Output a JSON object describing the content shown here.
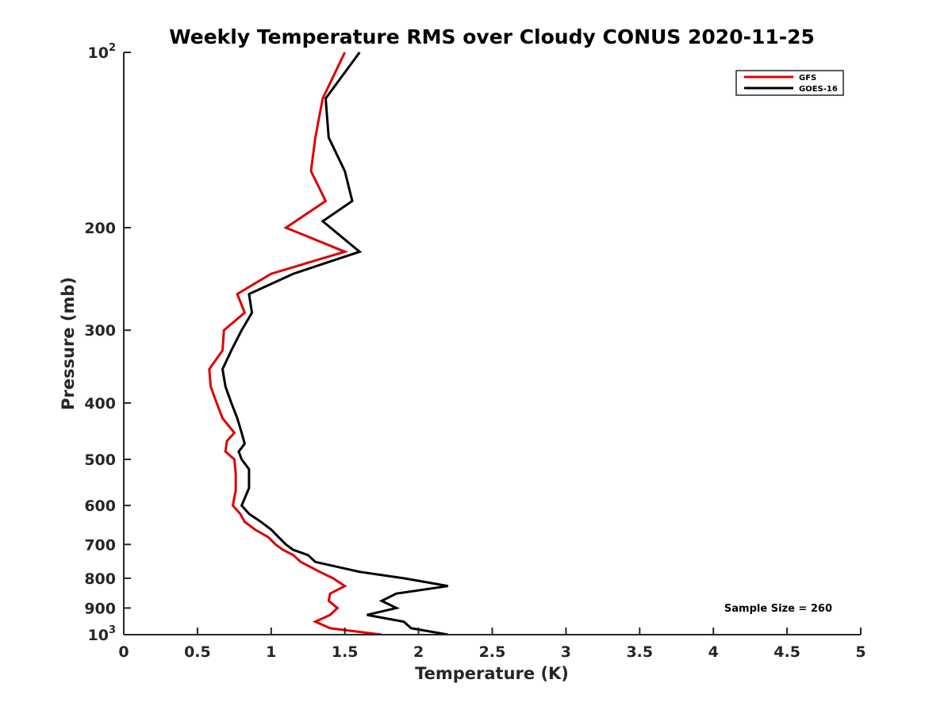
{
  "chart_data": {
    "type": "line",
    "title": "Weekly Temperature RMS over Cloudy CONUS 2020-11-25",
    "xlabel": "Temperature (K)",
    "ylabel": "Pressure (mb)",
    "xlim": [
      0,
      5
    ],
    "ylim": [
      1000,
      100
    ],
    "y_scale": "log",
    "y_reversed": true,
    "x_ticks": [
      0,
      0.5,
      1,
      1.5,
      2,
      2.5,
      3,
      3.5,
      4,
      4.5,
      5
    ],
    "x_tick_labels": [
      "0",
      "0.5",
      "1",
      "1.5",
      "2",
      "2.5",
      "3",
      "3.5",
      "4",
      "4.5",
      "5"
    ],
    "y_ticks": [
      100,
      200,
      300,
      400,
      500,
      600,
      700,
      800,
      900,
      1000
    ],
    "y_tick_labels": [
      {
        "base": "10",
        "sup": "2"
      },
      {
        "base": "200",
        "sup": ""
      },
      {
        "base": "300",
        "sup": ""
      },
      {
        "base": "400",
        "sup": ""
      },
      {
        "base": "500",
        "sup": ""
      },
      {
        "base": "600",
        "sup": ""
      },
      {
        "base": "700",
        "sup": ""
      },
      {
        "base": "800",
        "sup": ""
      },
      {
        "base": "900",
        "sup": ""
      },
      {
        "base": "10",
        "sup": "3"
      }
    ],
    "grid": false,
    "legend_position": "top-right",
    "annotation": "Sample Size = 260",
    "series": [
      {
        "name": "GFS",
        "color": "#dd0000",
        "points": [
          [
            1.5,
            100
          ],
          [
            1.35,
            120
          ],
          [
            1.3,
            140
          ],
          [
            1.27,
            160
          ],
          [
            1.37,
            180
          ],
          [
            1.1,
            200
          ],
          [
            1.5,
            220
          ],
          [
            1.0,
            240
          ],
          [
            0.77,
            260
          ],
          [
            0.82,
            280
          ],
          [
            0.68,
            300
          ],
          [
            0.67,
            325
          ],
          [
            0.58,
            350
          ],
          [
            0.59,
            375
          ],
          [
            0.63,
            400
          ],
          [
            0.67,
            425
          ],
          [
            0.75,
            450
          ],
          [
            0.7,
            465
          ],
          [
            0.69,
            485
          ],
          [
            0.75,
            500
          ],
          [
            0.76,
            530
          ],
          [
            0.76,
            565
          ],
          [
            0.74,
            600
          ],
          [
            0.79,
            620
          ],
          [
            0.82,
            640
          ],
          [
            0.89,
            660
          ],
          [
            0.98,
            680
          ],
          [
            1.03,
            700
          ],
          [
            1.08,
            715
          ],
          [
            1.15,
            730
          ],
          [
            1.2,
            750
          ],
          [
            1.33,
            780
          ],
          [
            1.42,
            800
          ],
          [
            1.5,
            825
          ],
          [
            1.4,
            850
          ],
          [
            1.39,
            875
          ],
          [
            1.45,
            900
          ],
          [
            1.4,
            925
          ],
          [
            1.3,
            950
          ],
          [
            1.4,
            975
          ],
          [
            1.75,
            1000
          ],
          [
            1.65,
            1015
          ]
        ]
      },
      {
        "name": "GOES-16",
        "color": "#000000",
        "points": [
          [
            1.6,
            100
          ],
          [
            1.37,
            120
          ],
          [
            1.39,
            140
          ],
          [
            1.5,
            160
          ],
          [
            1.55,
            180
          ],
          [
            1.35,
            195
          ],
          [
            1.6,
            220
          ],
          [
            1.15,
            240
          ],
          [
            0.85,
            260
          ],
          [
            0.87,
            280
          ],
          [
            0.8,
            300
          ],
          [
            0.73,
            325
          ],
          [
            0.67,
            350
          ],
          [
            0.69,
            375
          ],
          [
            0.73,
            400
          ],
          [
            0.77,
            425
          ],
          [
            0.8,
            450
          ],
          [
            0.82,
            470
          ],
          [
            0.78,
            485
          ],
          [
            0.8,
            500
          ],
          [
            0.85,
            520
          ],
          [
            0.85,
            560
          ],
          [
            0.8,
            600
          ],
          [
            0.85,
            620
          ],
          [
            0.93,
            640
          ],
          [
            1.0,
            660
          ],
          [
            1.05,
            680
          ],
          [
            1.1,
            700
          ],
          [
            1.15,
            715
          ],
          [
            1.25,
            730
          ],
          [
            1.3,
            750
          ],
          [
            1.6,
            780
          ],
          [
            1.9,
            800
          ],
          [
            2.2,
            825
          ],
          [
            1.85,
            850
          ],
          [
            1.75,
            875
          ],
          [
            1.85,
            900
          ],
          [
            1.65,
            925
          ],
          [
            1.9,
            950
          ],
          [
            1.95,
            975
          ],
          [
            2.2,
            1000
          ],
          [
            2.05,
            1015
          ]
        ]
      }
    ]
  }
}
